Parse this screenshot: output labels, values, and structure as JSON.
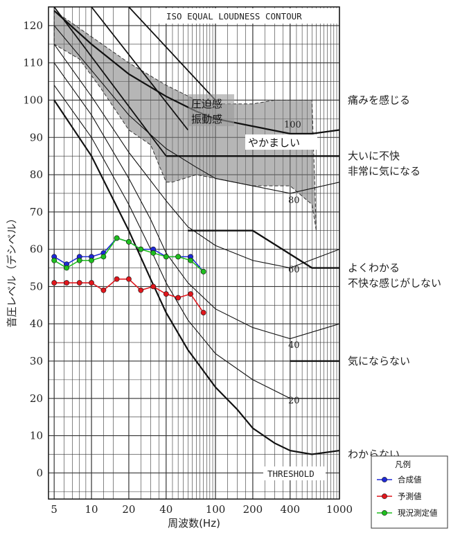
{
  "chart_data": {
    "type": "line",
    "title": "ISO EQUAL LOUDNESS CONTOUR",
    "xlabel": "周波数(Hz)",
    "ylabel": "音圧レベル（デシベル）",
    "x_scale": "log",
    "xlim": [
      4.5,
      1000
    ],
    "ylim": [
      -7,
      125
    ],
    "x_ticks": [
      "5",
      "10",
      "20",
      "40",
      "100",
      "200",
      "400",
      "1000"
    ],
    "x_tick_values": [
      5,
      10,
      20,
      40,
      100,
      200,
      400,
      1000
    ],
    "y_ticks": [
      "120",
      "110",
      "100",
      "90",
      "80",
      "70",
      "60",
      "50",
      "40",
      "30",
      "20",
      "10",
      "0"
    ],
    "y_tick_values": [
      120,
      110,
      100,
      90,
      80,
      70,
      60,
      50,
      40,
      30,
      20,
      10,
      0
    ],
    "grid": true,
    "legend_position": "bottom-right",
    "legend": {
      "title": "凡例",
      "items": [
        {
          "label": "合成値",
          "color": "#1f2ad6"
        },
        {
          "label": "予測値",
          "color": "#e0161c"
        },
        {
          "label": "現況測定値",
          "color": "#1fbf1f"
        }
      ]
    },
    "series": [
      {
        "name": "合成値",
        "color": "#1f2ad6",
        "x": [
          5,
          6.3,
          8,
          10,
          12.5,
          16,
          20,
          25,
          31.5,
          40,
          50,
          63,
          80
        ],
        "y": [
          58,
          56,
          58,
          58,
          59,
          63,
          62,
          60,
          60,
          58,
          58,
          58,
          54
        ]
      },
      {
        "name": "予測値",
        "color": "#e0161c",
        "x": [
          5,
          6.3,
          8,
          10,
          12.5,
          16,
          20,
          25,
          31.5,
          40,
          50,
          63,
          80
        ],
        "y": [
          51,
          51,
          51,
          51,
          49,
          52,
          52,
          49,
          50,
          48,
          47,
          48,
          43
        ]
      },
      {
        "name": "現況測定値",
        "color": "#1fbf1f",
        "x": [
          5,
          6.3,
          8,
          10,
          12.5,
          16,
          20,
          25,
          31.5,
          40,
          50,
          63,
          80
        ],
        "y": [
          57,
          55,
          57,
          57,
          58,
          63,
          62,
          60,
          59,
          58,
          58,
          57,
          54
        ]
      }
    ],
    "contours": [
      {
        "label": "100",
        "x": [
          5,
          10,
          20,
          40,
          70,
          100,
          200,
          400,
          600,
          1000
        ],
        "y": [
          124,
          115,
          107,
          101,
          97,
          95,
          93,
          91,
          91,
          92
        ]
      },
      {
        "label": "80",
        "x": [
          5,
          10,
          20,
          40,
          70,
          100,
          200,
          400,
          1000
        ],
        "y": [
          120,
          108,
          96,
          87,
          82,
          79,
          77,
          75,
          78
        ]
      },
      {
        "label": "60",
        "x": [
          5,
          10,
          20,
          40,
          60,
          100,
          200,
          400,
          1000
        ],
        "y": [
          115,
          101,
          86,
          73,
          66,
          61,
          57,
          55,
          60
        ]
      },
      {
        "label": "40",
        "x": [
          5,
          10,
          20,
          30,
          40,
          60,
          100,
          200,
          400,
          1000
        ],
        "y": [
          110,
          96,
          79,
          68,
          59,
          51,
          44,
          39,
          36,
          40
        ]
      },
      {
        "label": "20",
        "x": [
          5,
          10,
          20,
          30,
          40,
          60,
          100,
          200,
          400,
          1000
        ],
        "y": [
          104,
          90,
          72,
          60,
          51,
          41,
          32,
          25,
          20,
          20
        ]
      },
      {
        "label": "",
        "x": [
          5,
          10,
          20,
          30,
          40,
          60,
          100,
          150,
          200,
          300,
          400,
          600,
          1000
        ],
        "y": [
          100,
          85,
          65,
          52,
          43,
          33,
          23,
          17,
          12,
          8,
          6,
          5,
          6
        ]
      }
    ],
    "threshold_label": "THRESHOLD",
    "contour_level_labels": [
      "100",
      "80",
      "60",
      "40",
      "20"
    ],
    "region_labels": [
      "圧迫感",
      "振動感",
      "やかましい"
    ],
    "right_labels": [
      {
        "level": 100,
        "lines": [
          "痛みを感じる"
        ]
      },
      {
        "level": 85,
        "lines": [
          "大いに不快",
          "非常に気になる"
        ]
      },
      {
        "level": 55,
        "lines": [
          "よくわかる",
          "不快な感じがしない"
        ]
      },
      {
        "level": 30,
        "lines": [
          "気にならない"
        ]
      },
      {
        "level": 5,
        "lines": [
          "わからない"
        ]
      }
    ],
    "step_lines": [
      {
        "x": [
          40,
          1000
        ],
        "y": [
          85,
          85
        ]
      },
      {
        "x": [
          60,
          200,
          600,
          1000
        ],
        "y": [
          65,
          65,
          55,
          55
        ]
      },
      {
        "x": [
          400,
          1000
        ],
        "y": [
          30,
          30
        ]
      }
    ]
  }
}
